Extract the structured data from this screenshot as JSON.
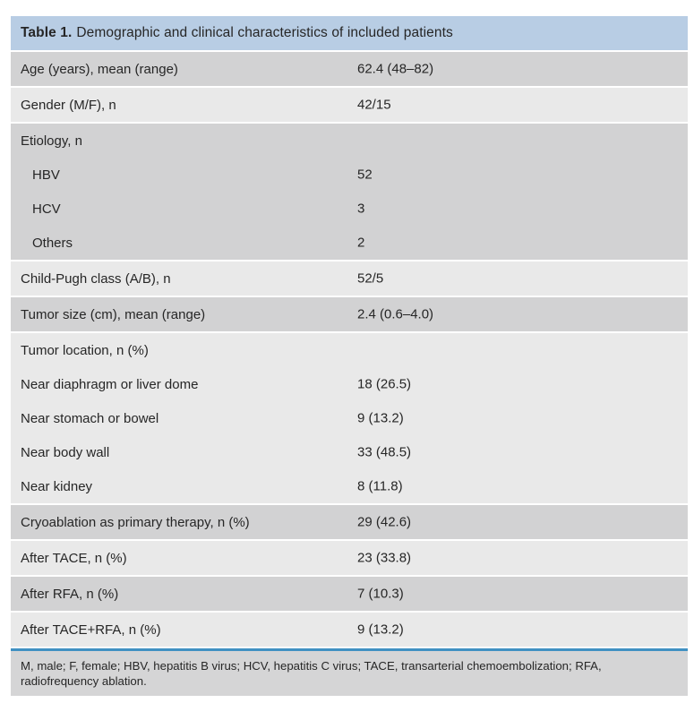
{
  "colors": {
    "header_bg": "#b8cde4",
    "row_dark": "#d2d2d3",
    "row_light": "#e9e9e9",
    "footer_bg": "#d5d5d6",
    "rule_blue": "#4090c2",
    "text": "#262626"
  },
  "table": {
    "title_label": "Table 1.",
    "title_text": "Demographic and clinical characteristics of included patients",
    "blocks": [
      {
        "shade": "dark",
        "rows": [
          {
            "label": "Age (years), mean (range)",
            "value": "62.4 (48–82)",
            "indent": false
          }
        ]
      },
      {
        "shade": "light",
        "rows": [
          {
            "label": "Gender (M/F), n",
            "value": "42/15",
            "indent": false
          }
        ]
      },
      {
        "shade": "dark",
        "rows": [
          {
            "label": "Etiology, n",
            "value": "",
            "indent": false
          },
          {
            "label": "HBV",
            "value": "52",
            "indent": true
          },
          {
            "label": "HCV",
            "value": "3",
            "indent": true
          },
          {
            "label": "Others",
            "value": "2",
            "indent": true
          }
        ]
      },
      {
        "shade": "light",
        "rows": [
          {
            "label": "Child-Pugh class (A/B), n",
            "value": "52/5",
            "indent": false
          }
        ]
      },
      {
        "shade": "dark",
        "rows": [
          {
            "label": "Tumor size (cm), mean (range)",
            "value": "2.4 (0.6–4.0)",
            "indent": false
          }
        ]
      },
      {
        "shade": "light",
        "rows": [
          {
            "label": "Tumor location, n (%)",
            "value": "",
            "indent": false
          },
          {
            "label": "Near diaphragm or liver dome",
            "value": "18 (26.5)",
            "indent": false
          },
          {
            "label": "Near stomach or bowel",
            "value": "9 (13.2)",
            "indent": false
          },
          {
            "label": "Near body wall",
            "value": "33 (48.5)",
            "indent": false
          },
          {
            "label": "Near kidney",
            "value": "8 (11.8)",
            "indent": false
          }
        ]
      },
      {
        "shade": "dark",
        "rows": [
          {
            "label": "Cryoablation as primary therapy, n (%)",
            "value": "29 (42.6)",
            "indent": false
          }
        ]
      },
      {
        "shade": "light",
        "rows": [
          {
            "label": "After TACE, n (%)",
            "value": "23 (33.8)",
            "indent": false
          }
        ]
      },
      {
        "shade": "dark",
        "rows": [
          {
            "label": "After RFA, n (%)",
            "value": "7 (10.3)",
            "indent": false
          }
        ]
      },
      {
        "shade": "light",
        "rows": [
          {
            "label": "After TACE+RFA, n (%)",
            "value": "9 (13.2)",
            "indent": false
          }
        ]
      }
    ],
    "footnote": "M, male; F, female; HBV, hepatitis B virus; HCV, hepatitis C virus; TACE, transarterial chemoembolization; RFA, radiofrequency ablation."
  }
}
